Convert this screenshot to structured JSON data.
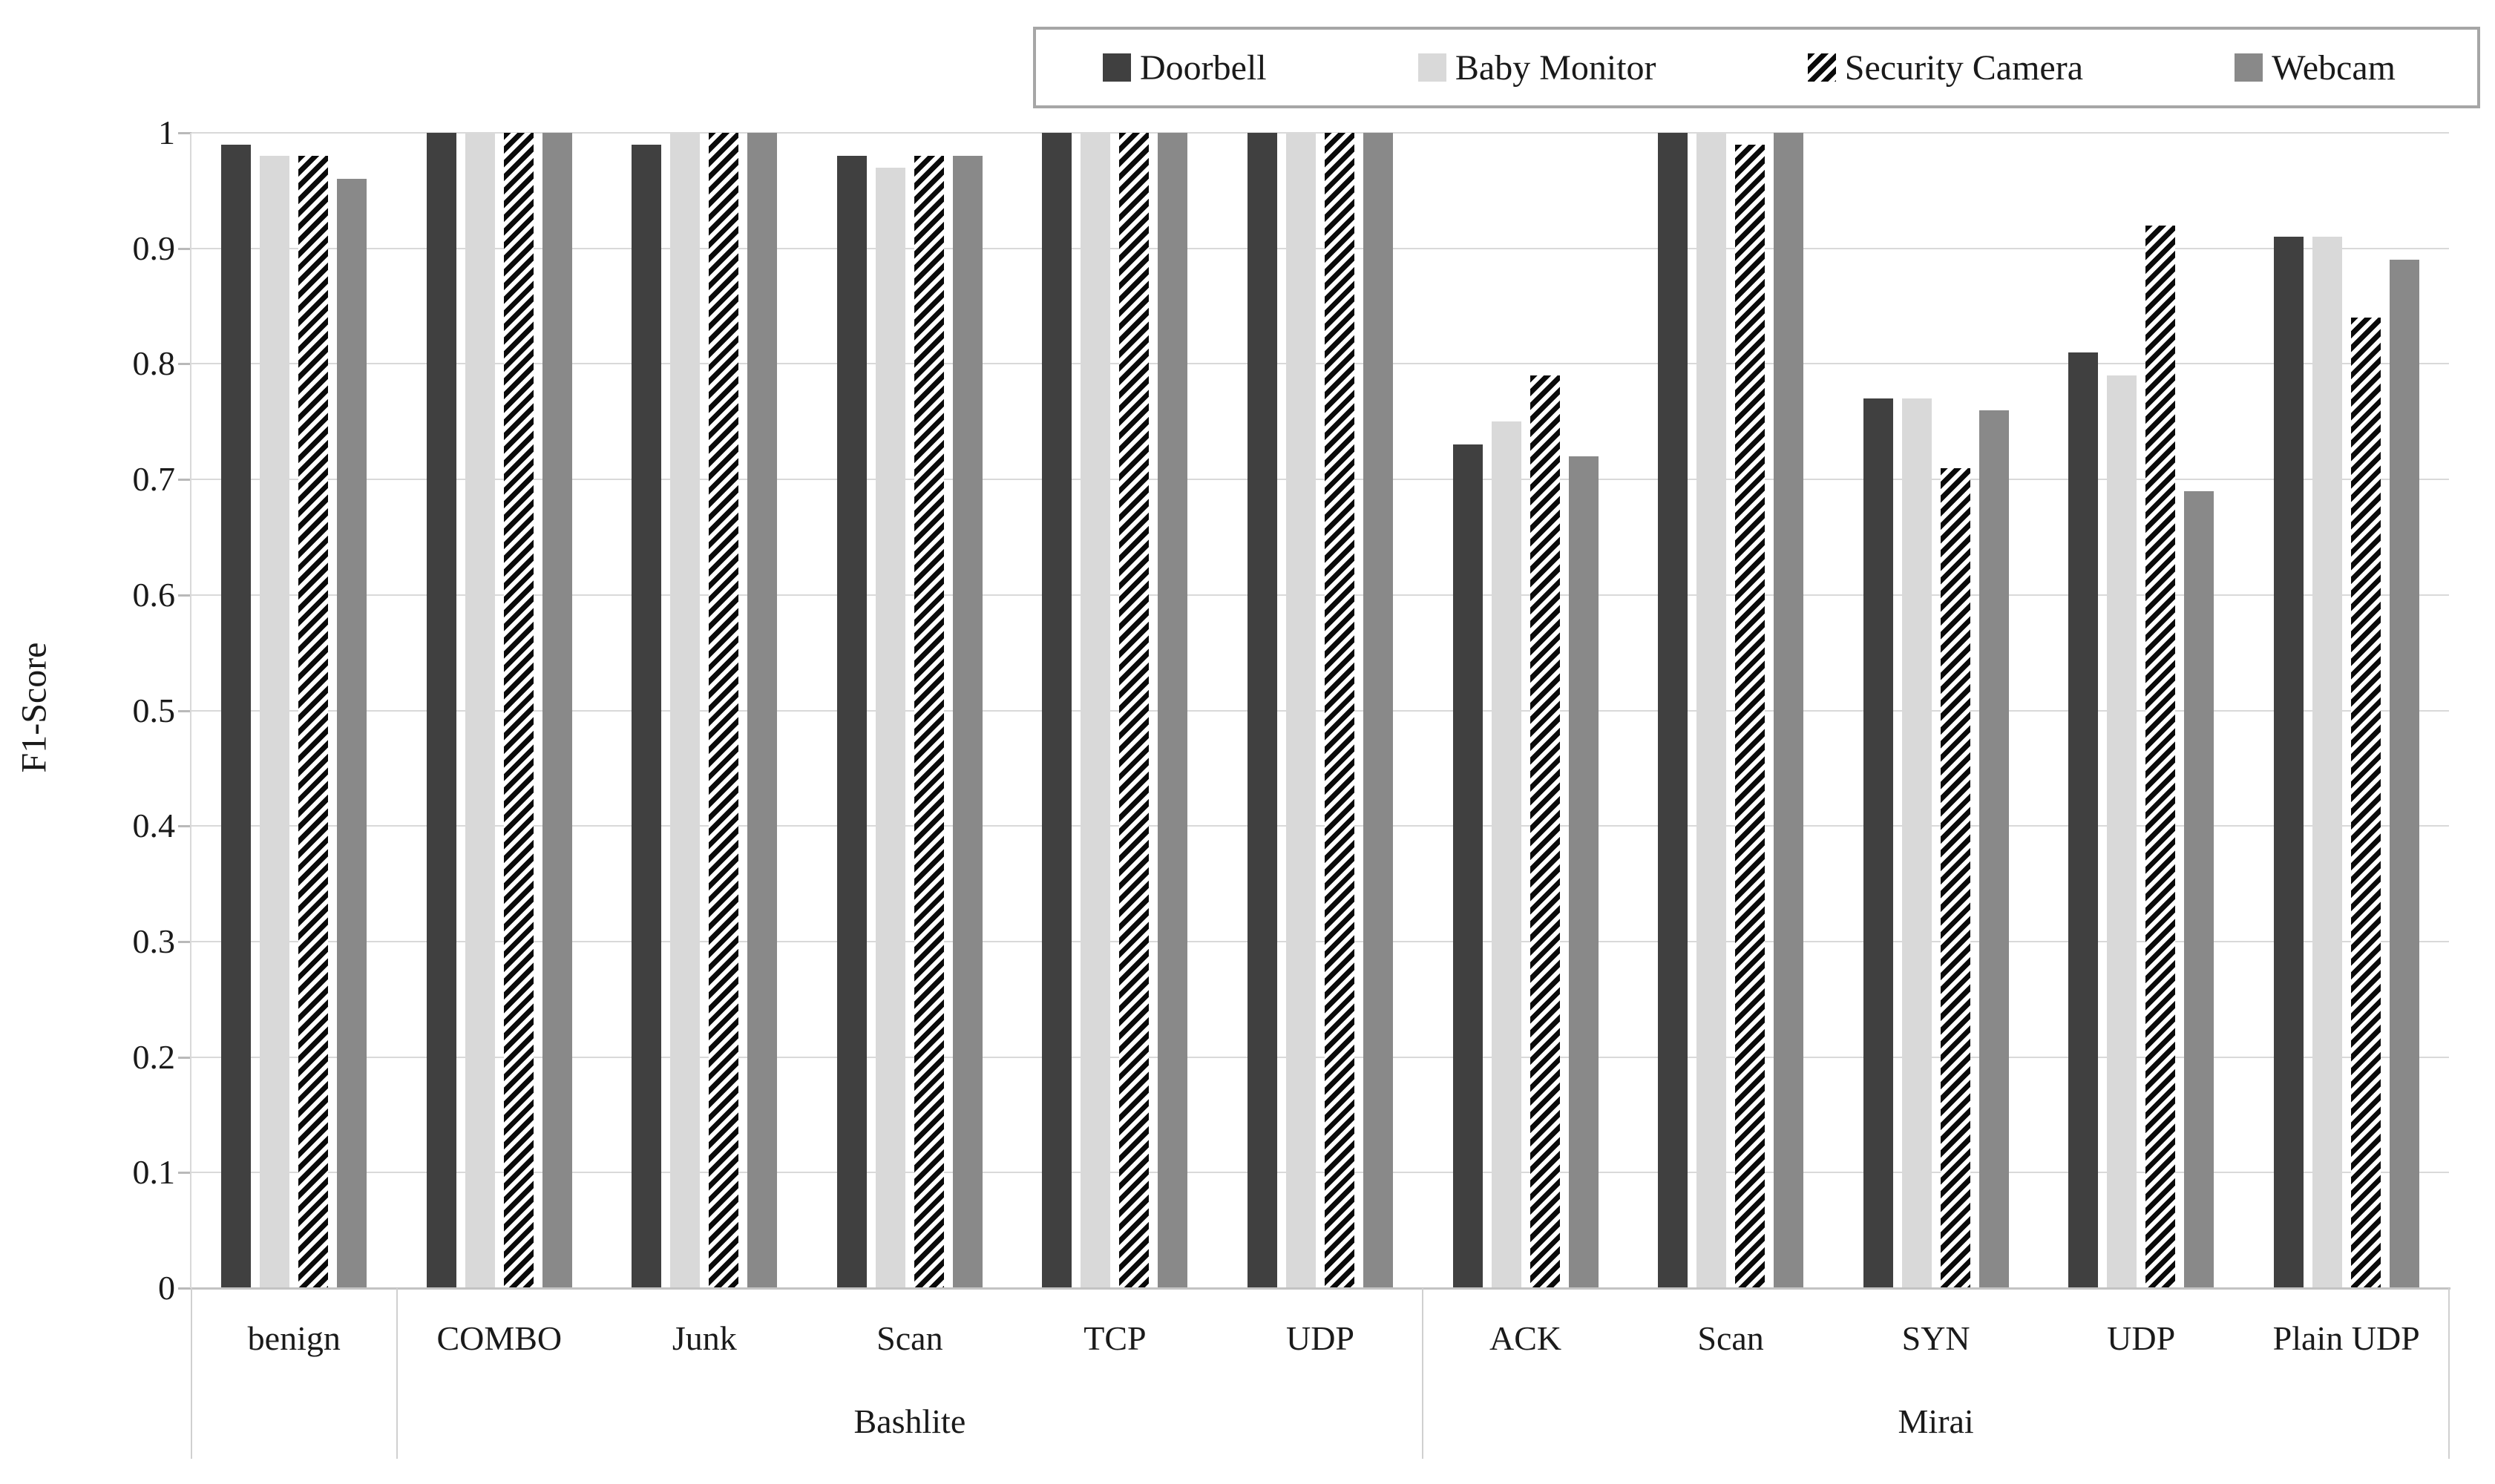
{
  "chart_data": {
    "type": "bar",
    "title": "",
    "ylabel": "F1-Score",
    "xlabel": "",
    "ylim": [
      0,
      1
    ],
    "ytick_labels": [
      "1",
      "0.9",
      "0.8",
      "0.7",
      "0.6",
      "0.5",
      "0.4",
      "0.3",
      "0.2",
      "0.1",
      "0"
    ],
    "ytick_values": [
      1,
      0.9,
      0.8,
      0.7,
      0.6,
      0.5,
      0.4,
      0.3,
      0.2,
      0.1,
      0
    ],
    "grid": "horizontal",
    "legend_position": "top-right",
    "categories": [
      "benign",
      "COMBO",
      "Junk",
      "Scan",
      "TCP",
      "UDP",
      "ACK",
      "Scan",
      "SYN",
      "UDP",
      "Plain UDP"
    ],
    "category_groups": [
      {
        "label": "",
        "count": 1
      },
      {
        "label": "Bashlite",
        "count": 5
      },
      {
        "label": "Mirai",
        "count": 5
      }
    ],
    "series": [
      {
        "name": "Doorbell",
        "pattern": "solid",
        "color": "#404040",
        "values": [
          0.99,
          1.0,
          0.99,
          0.98,
          1.0,
          1.0,
          0.73,
          1.0,
          0.77,
          0.81,
          0.91
        ]
      },
      {
        "name": "Baby Monitor",
        "pattern": "solid",
        "color": "#d9d9d9",
        "values": [
          0.98,
          1.0,
          1.0,
          0.97,
          1.0,
          1.0,
          0.75,
          1.0,
          0.77,
          0.79,
          0.91
        ]
      },
      {
        "name": "Security Camera",
        "pattern": "diagonal-hatch",
        "color": "#0a0a0a",
        "background": "#ffffff",
        "values": [
          0.98,
          1.0,
          1.0,
          0.98,
          1.0,
          1.0,
          0.79,
          0.99,
          0.71,
          0.92,
          0.84
        ]
      },
      {
        "name": "Webcam",
        "pattern": "solid",
        "color": "#898989",
        "values": [
          0.96,
          1.0,
          1.0,
          0.98,
          1.0,
          1.0,
          0.72,
          1.0,
          0.76,
          0.69,
          0.89
        ]
      }
    ]
  },
  "colors": {
    "gridline": "#d9d9d9",
    "axis_line": "#c3c3c3",
    "separator": "#d0d0d0",
    "legend_border": "#a6a6a6",
    "text": "#1a1a1a",
    "background": "#ffffff"
  }
}
